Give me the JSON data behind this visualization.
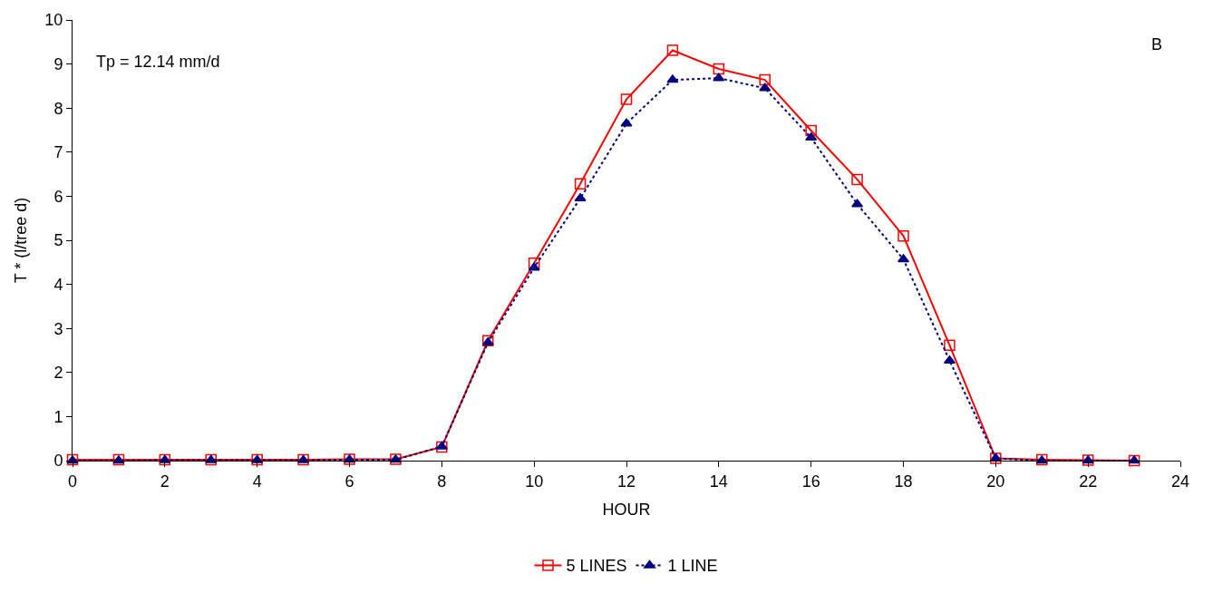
{
  "chart_data": {
    "type": "line",
    "xlabel": "HOUR",
    "ylabel": "T * (l/tree d)",
    "annotations": [
      "Tp = 12.14 mm/d",
      "B"
    ],
    "x": [
      0,
      1,
      2,
      3,
      4,
      5,
      6,
      7,
      8,
      9,
      10,
      11,
      12,
      13,
      14,
      15,
      16,
      17,
      18,
      19,
      20,
      21,
      22,
      23
    ],
    "series": [
      {
        "name": "5 LINES",
        "color": "#ff0000",
        "marker": "square",
        "line_style": "solid",
        "values": [
          0.02,
          0.02,
          0.02,
          0.02,
          0.02,
          0.02,
          0.03,
          0.03,
          0.31,
          2.72,
          4.48,
          6.28,
          8.2,
          9.31,
          8.89,
          8.64,
          7.49,
          6.38,
          5.1,
          2.62,
          0.05,
          0.02,
          0.01,
          0.0
        ]
      },
      {
        "name": "1 LINE",
        "color": "#000080",
        "marker": "triangle",
        "line_style": "dotted",
        "values": [
          0.0,
          0.0,
          0.01,
          0.01,
          0.01,
          0.01,
          0.02,
          0.02,
          0.32,
          2.68,
          4.38,
          5.95,
          7.65,
          8.64,
          8.68,
          8.45,
          7.33,
          5.82,
          4.57,
          2.27,
          0.05,
          0.0,
          0.0,
          0.0
        ]
      }
    ],
    "xlim": [
      0,
      24
    ],
    "xticks": [
      0,
      2,
      4,
      6,
      8,
      10,
      12,
      14,
      16,
      18,
      20,
      22,
      24
    ],
    "ylim": [
      0,
      10
    ],
    "yticks": [
      0,
      1,
      2,
      3,
      4,
      5,
      6,
      7,
      8,
      9,
      10
    ],
    "legend": "bottom"
  }
}
